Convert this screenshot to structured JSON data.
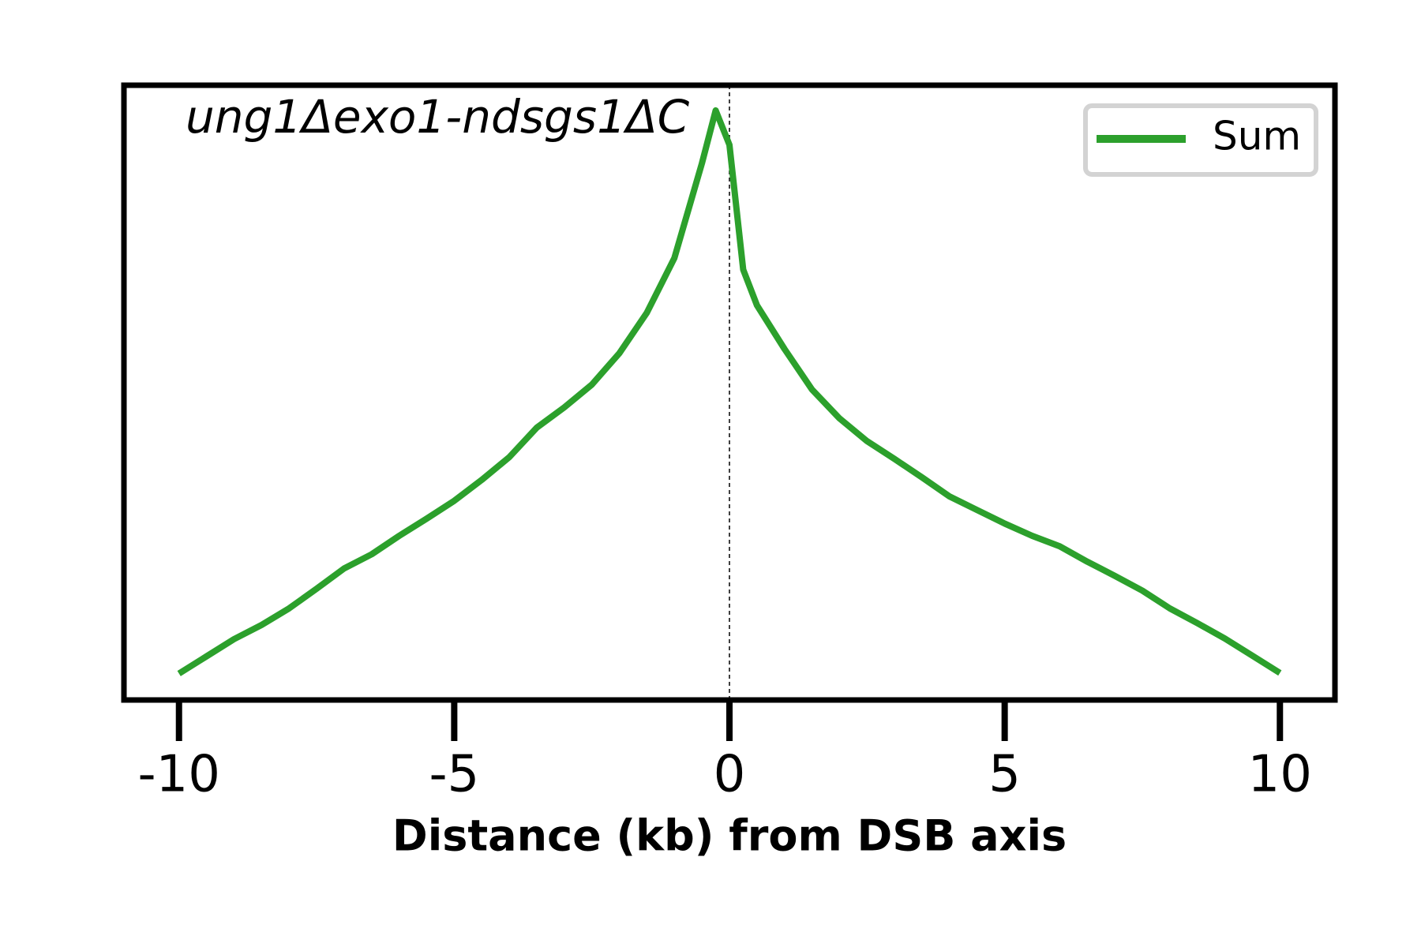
{
  "chart_data": {
    "type": "line",
    "annotation": "ung1Δexo1-ndsgs1ΔC",
    "xlabel": "Distance (kb) from DSB axis",
    "x": [
      -10,
      -9.5,
      -9,
      -8.5,
      -8,
      -7.5,
      -7,
      -6.5,
      -6,
      -5.5,
      -5,
      -4.5,
      -4,
      -3.5,
      -3,
      -2.5,
      -2,
      -1.5,
      -1,
      -0.5,
      -0.25,
      0,
      0.25,
      0.5,
      1,
      1.5,
      2,
      2.5,
      3,
      3.5,
      4,
      4.5,
      5,
      5.5,
      6,
      6.5,
      7,
      7.5,
      8,
      8.5,
      9,
      9.5,
      10
    ],
    "series": [
      {
        "name": "Sum",
        "color": "#2ca02c",
        "values": [
          0.043,
          0.071,
          0.099,
          0.122,
          0.149,
          0.181,
          0.214,
          0.237,
          0.267,
          0.295,
          0.324,
          0.358,
          0.395,
          0.443,
          0.476,
          0.513,
          0.564,
          0.63,
          0.719,
          0.873,
          0.959,
          0.903,
          0.7,
          0.642,
          0.571,
          0.505,
          0.458,
          0.421,
          0.392,
          0.362,
          0.331,
          0.309,
          0.287,
          0.267,
          0.25,
          0.225,
          0.202,
          0.178,
          0.149,
          0.125,
          0.1,
          0.072,
          0.044
        ]
      }
    ],
    "xlim": [
      -11,
      11
    ],
    "xticks": [
      -10,
      -5,
      0,
      5,
      10
    ],
    "ylim": [
      0,
      1
    ],
    "vline": 0,
    "legend": "upper right"
  }
}
